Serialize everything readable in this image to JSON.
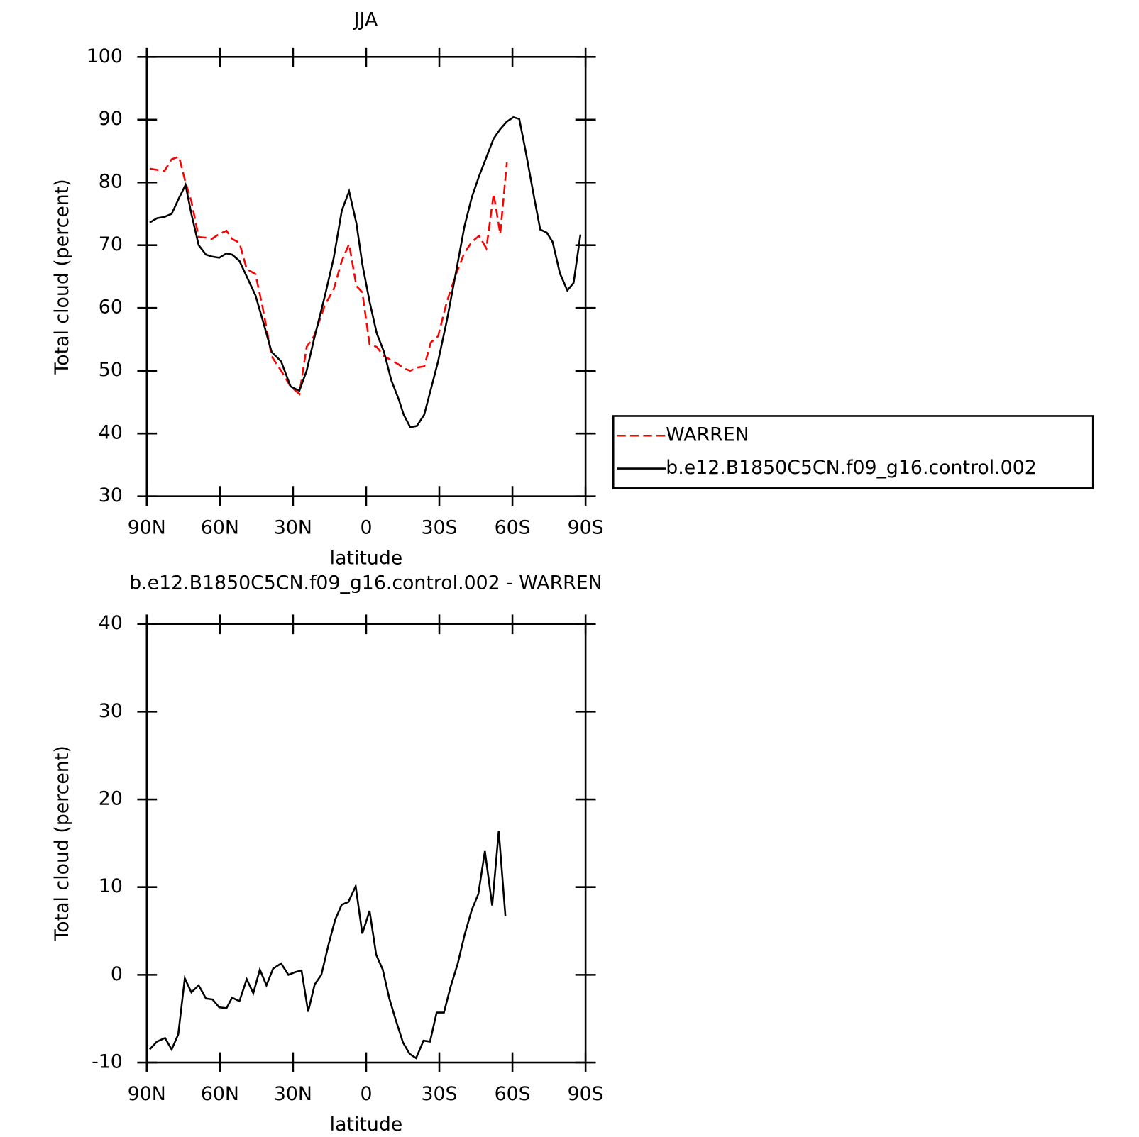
{
  "chart_data": [
    {
      "type": "line",
      "title": "JJA",
      "x_label": "latitude",
      "y_label": "Total cloud (percent)",
      "x": [
        88.8,
        85.8,
        82.8,
        79.8,
        76.8,
        74.1,
        71.7,
        68.7,
        65.7,
        63.3,
        60.3,
        57.3,
        55.0,
        52.0,
        49.0,
        45.4,
        42.4,
        38.8,
        34.9,
        31.0,
        27.4,
        24.4,
        21.4,
        16.9,
        13.3,
        10.0,
        7.0,
        4.0,
        1.6,
        -1.4,
        -4.3,
        -7.3,
        -10.3,
        -13.3,
        -15.4,
        -18.1,
        -20.8,
        -23.8,
        -26.5,
        -29.5,
        -33.1,
        -37.0,
        -40.3,
        -43.3,
        -46.3,
        -49.3,
        -52.3,
        -55.0,
        -57.7,
        -60.4,
        -62.8,
        -65.4,
        -68.7,
        -71.4,
        -74.1,
        -76.5,
        -79.5,
        -82.5,
        -85.1,
        -87.9
      ],
      "series": [
        {
          "name": "WARREN",
          "color": "#ff0000",
          "line_style": "dashed",
          "values": [
            82.2,
            82.0,
            81.8,
            83.7,
            84.1,
            80.0,
            77.0,
            71.3,
            71.2,
            71.0,
            71.8,
            72.3,
            71.0,
            70.4,
            66.2,
            65.4,
            60.0,
            52.3,
            50.0,
            47.5,
            46.3,
            53.8,
            55.5,
            60.5,
            63.0,
            67.5,
            70.2,
            63.5,
            62.5,
            54.2,
            53.8,
            52.3,
            51.7,
            51.0,
            50.4,
            50.0,
            50.5,
            50.7,
            54.5,
            55.5,
            61.0,
            65.5,
            68.8,
            70.5,
            71.5,
            69.5,
            78.2,
            71.8,
            83.2,
            null,
            null,
            null,
            null,
            null,
            null,
            null,
            null,
            null,
            null,
            null
          ]
        },
        {
          "name": "b.e12.B1850C5CN.f09_g16.control.002",
          "color": "#000000",
          "line_style": "solid",
          "values": [
            73.6,
            74.3,
            74.5,
            75.0,
            77.5,
            79.6,
            75.0,
            70.0,
            68.5,
            68.2,
            68.0,
            68.7,
            68.5,
            67.5,
            65.0,
            62.0,
            58.0,
            53.0,
            51.5,
            47.5,
            46.8,
            50.0,
            55.0,
            62.0,
            68.0,
            75.5,
            78.6,
            73.5,
            67.0,
            61.0,
            56.0,
            53.0,
            48.5,
            45.5,
            43.0,
            41.0,
            41.2,
            43.0,
            47.0,
            51.5,
            58.0,
            66.0,
            73.0,
            77.6,
            81.0,
            84.0,
            87.0,
            88.5,
            89.7,
            90.4,
            90.1,
            85.0,
            78.0,
            72.5,
            72.0,
            70.5,
            65.5,
            62.8,
            64.0,
            71.7
          ]
        }
      ],
      "xlim": [
        90,
        -90
      ],
      "xticks": [
        {
          "value": 90,
          "label": "90N"
        },
        {
          "value": 60,
          "label": "60N"
        },
        {
          "value": 30,
          "label": "30N"
        },
        0,
        {
          "value": -30,
          "label": "30S"
        },
        {
          "value": -60,
          "label": "60S"
        },
        {
          "value": -90,
          "label": "90S"
        }
      ],
      "ylim": [
        30,
        100
      ],
      "yticks": [
        30,
        40,
        50,
        60,
        70,
        80,
        90,
        100
      ],
      "legend": "outside right"
    },
    {
      "type": "line",
      "title": "b.e12.B1850C5CN.f09_g16.control.002 - WARREN",
      "x_label": "latitude",
      "y_label": "Total cloud (percent)",
      "x": [
        88.8,
        85.8,
        82.5,
        79.8,
        77.1,
        74.4,
        71.7,
        68.7,
        65.7,
        63.0,
        60.3,
        57.3,
        55.0,
        52.0,
        49.0,
        46.3,
        43.6,
        40.9,
        38.2,
        34.9,
        31.9,
        29.2,
        26.5,
        23.8,
        21.1,
        18.4,
        15.4,
        12.7,
        10.0,
        7.3,
        4.3,
        1.6,
        -1.4,
        -4.1,
        -6.8,
        -9.5,
        -12.2,
        -15.1,
        -17.8,
        -20.5,
        -23.5,
        -26.2,
        -28.9,
        -31.9,
        -34.6,
        -37.6,
        -40.3,
        -43.3,
        -46.0,
        -48.7,
        -51.7,
        -54.4,
        -57.1
      ],
      "color": "#000000",
      "values": [
        -8.5,
        -7.6,
        -7.2,
        -8.5,
        -6.8,
        -0.4,
        -2.0,
        -1.2,
        -2.7,
        -2.8,
        -3.7,
        -3.8,
        -2.6,
        -3.0,
        -0.5,
        -2.1,
        0.6,
        -1.2,
        0.7,
        1.3,
        0.0,
        0.3,
        0.5,
        -4.2,
        -1.1,
        0.0,
        3.5,
        6.3,
        8.0,
        8.3,
        10.1,
        4.7,
        7.3,
        2.3,
        0.6,
        -2.7,
        -5.2,
        -7.7,
        -9.0,
        -9.5,
        -7.5,
        -7.6,
        -4.3,
        -4.3,
        -1.4,
        1.3,
        4.5,
        7.4,
        9.2,
        14.1,
        7.9,
        16.4,
        6.7
      ],
      "xlim": [
        90,
        -90
      ],
      "xticks": [
        {
          "value": 90,
          "label": "90N"
        },
        {
          "value": 60,
          "label": "60N"
        },
        {
          "value": 30,
          "label": "30N"
        },
        0,
        {
          "value": -30,
          "label": "30S"
        },
        {
          "value": -60,
          "label": "60S"
        },
        {
          "value": -90,
          "label": "90S"
        }
      ],
      "ylim": [
        -10,
        40
      ],
      "yticks": [
        -10,
        0,
        10,
        20,
        30,
        40
      ]
    }
  ]
}
